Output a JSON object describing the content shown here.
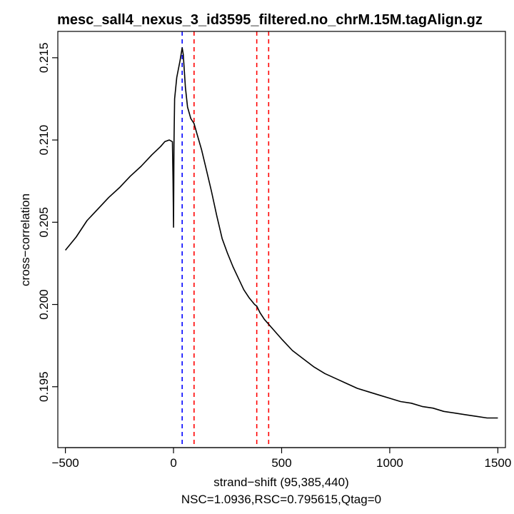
{
  "chart_data": {
    "type": "line",
    "title": "mesc_sall4_nexus_3_id3595_filtered.no_chrM.15M.tagAlign.gz",
    "xlabel": "strand−shift (95,385,440)",
    "subtitle": "NSC=1.0936,RSC=0.795615,Qtag=0",
    "ylabel": "cross−correlation",
    "xlim": [
      -535,
      1535
    ],
    "ylim": [
      0.1913,
      0.2166
    ],
    "x_ticks": [
      -500,
      0,
      500,
      1000,
      1500
    ],
    "x_tick_labels": [
      "−500",
      "0",
      "500",
      "1000",
      "1500"
    ],
    "y_ticks": [
      0.195,
      0.2,
      0.205,
      0.21,
      0.215
    ],
    "y_tick_labels": [
      "0.195",
      "0.200",
      "0.205",
      "0.210",
      "0.215"
    ],
    "grid": false,
    "series": [
      {
        "color": "#000000",
        "x": [
          -500,
          -450,
          -400,
          -350,
          -300,
          -250,
          -200,
          -150,
          -100,
          -60,
          -40,
          -20,
          -5,
          -2,
          0,
          2,
          5,
          15,
          30,
          40,
          45,
          55,
          65,
          80,
          95,
          110,
          130,
          150,
          175,
          200,
          225,
          250,
          275,
          300,
          325,
          350,
          375,
          385,
          400,
          420,
          440,
          460,
          500,
          550,
          600,
          650,
          700,
          750,
          800,
          850,
          900,
          950,
          1000,
          1050,
          1100,
          1150,
          1200,
          1250,
          1300,
          1350,
          1400,
          1450,
          1500
        ],
        "y": [
          0.2033,
          0.2041,
          0.2051,
          0.2058,
          0.2065,
          0.2071,
          0.2078,
          0.2084,
          0.2091,
          0.2096,
          0.2099,
          0.21,
          0.2099,
          0.2075,
          0.2047,
          0.2097,
          0.2125,
          0.2138,
          0.2148,
          0.2156,
          0.2152,
          0.2132,
          0.212,
          0.2113,
          0.211,
          0.2103,
          0.2094,
          0.2083,
          0.2069,
          0.2054,
          0.204,
          0.2031,
          0.2023,
          0.2016,
          0.2009,
          0.2004,
          0.2,
          0.1999,
          0.1995,
          0.1991,
          0.1988,
          0.1985,
          0.1979,
          0.1972,
          0.1967,
          0.1962,
          0.1958,
          0.1955,
          0.1952,
          0.1949,
          0.1947,
          0.1945,
          0.1943,
          0.1941,
          0.194,
          0.1938,
          0.1937,
          0.1935,
          0.1934,
          0.1933,
          0.1932,
          0.1931,
          0.1931
        ]
      }
    ],
    "vertical_lines": [
      {
        "x": 40,
        "color": "#0000ff",
        "style": "dashed"
      },
      {
        "x": 95,
        "color": "#ff0000",
        "style": "dashed"
      },
      {
        "x": 385,
        "color": "#ff0000",
        "style": "dashed"
      },
      {
        "x": 440,
        "color": "#ff0000",
        "style": "dashed"
      }
    ]
  }
}
